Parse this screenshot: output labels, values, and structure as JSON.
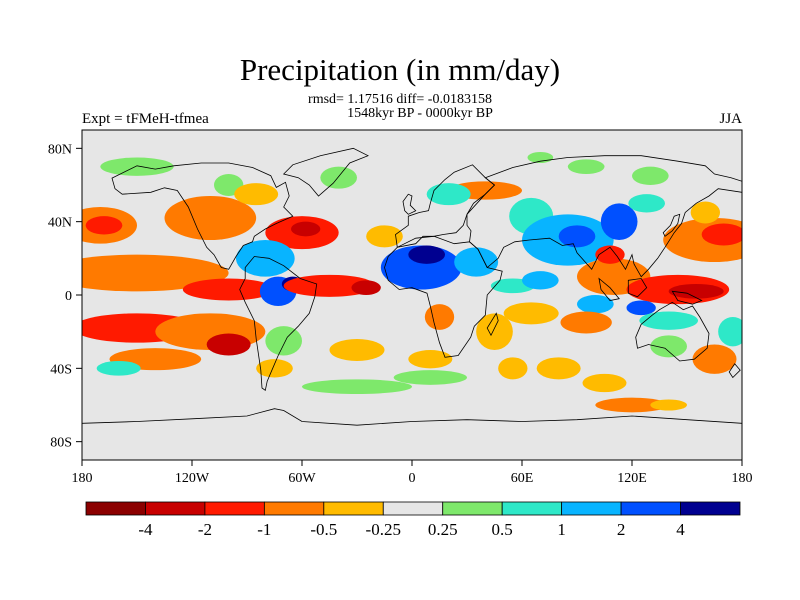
{
  "title": "Precipitation (in mm/day)",
  "stats_line1": "rmsd= 1.17516 diff= -0.0183158",
  "stats_line2": "1548kyr BP - 0000kyr BP",
  "left_label": "Expt = tFMeH-tfmea",
  "right_label": "JJA",
  "map": {
    "projection": "cylindrical-equidistant",
    "lon_range": [
      -180,
      180
    ],
    "lat_range": [
      -90,
      90
    ],
    "x_ticks": [
      {
        "lon": -180,
        "label": "180"
      },
      {
        "lon": -120,
        "label": "120W"
      },
      {
        "lon": -60,
        "label": "60W"
      },
      {
        "lon": 0,
        "label": "0"
      },
      {
        "lon": 60,
        "label": "60E"
      },
      {
        "lon": 120,
        "label": "120E"
      },
      {
        "lon": 180,
        "label": "180"
      }
    ],
    "y_ticks": [
      {
        "lat": 80,
        "label": "80N"
      },
      {
        "lat": 40,
        "label": "40N"
      },
      {
        "lat": 0,
        "label": "0"
      },
      {
        "lat": -40,
        "label": "40S"
      },
      {
        "lat": -80,
        "label": "80S"
      }
    ],
    "background_color": "#e6e6e6"
  },
  "colorbar": {
    "colors": [
      "#8b0000",
      "#c80000",
      "#ff1a00",
      "#ff7a00",
      "#ffbb00",
      "#e6e6e6",
      "#7ee86b",
      "#2ee8c8",
      "#08b4ff",
      "#0050ff",
      "#000090"
    ],
    "labels": [
      "-4",
      "-2",
      "-1",
      "-0.5",
      "-0.25",
      "0.25",
      "0.5",
      "1",
      "2",
      "4"
    ]
  },
  "field_anomalies": [
    {
      "lon": 70,
      "lat": 75,
      "rx": 7,
      "ry": 3,
      "level": 1
    },
    {
      "lon": -150,
      "lat": 70,
      "rx": 20,
      "ry": 5,
      "level": 1
    },
    {
      "lon": -40,
      "lat": 64,
      "rx": 10,
      "ry": 6,
      "level": 1
    },
    {
      "lon": 95,
      "lat": 70,
      "rx": 10,
      "ry": 4,
      "level": 1
    },
    {
      "lon": 130,
      "lat": 65,
      "rx": 10,
      "ry": 5,
      "level": 1
    },
    {
      "lon": -100,
      "lat": 60,
      "rx": 8,
      "ry": 6,
      "level": 1
    },
    {
      "lon": -170,
      "lat": 38,
      "rx": 20,
      "ry": 10,
      "level": -2
    },
    {
      "lon": -168,
      "lat": 38,
      "rx": 10,
      "ry": 5,
      "level": -3
    },
    {
      "lon": -110,
      "lat": 42,
      "rx": 25,
      "ry": 12,
      "level": -2
    },
    {
      "lon": -85,
      "lat": 55,
      "rx": 12,
      "ry": 6,
      "level": -1
    },
    {
      "lon": -60,
      "lat": 34,
      "rx": 20,
      "ry": 9,
      "level": -3
    },
    {
      "lon": -58,
      "lat": 36,
      "rx": 8,
      "ry": 4,
      "level": -4
    },
    {
      "lon": -15,
      "lat": 32,
      "rx": 10,
      "ry": 6,
      "level": -1
    },
    {
      "lon": 40,
      "lat": 57,
      "rx": 20,
      "ry": 5,
      "level": -2
    },
    {
      "lon": 20,
      "lat": 55,
      "rx": 12,
      "ry": 6,
      "level": 2
    },
    {
      "lon": 65,
      "lat": 43,
      "rx": 12,
      "ry": 10,
      "level": 2
    },
    {
      "lon": 85,
      "lat": 30,
      "rx": 25,
      "ry": 14,
      "level": 3
    },
    {
      "lon": 90,
      "lat": 32,
      "rx": 10,
      "ry": 6,
      "level": 4
    },
    {
      "lon": 113,
      "lat": 40,
      "rx": 10,
      "ry": 10,
      "level": 4
    },
    {
      "lon": 128,
      "lat": 50,
      "rx": 10,
      "ry": 5,
      "level": 2
    },
    {
      "lon": 165,
      "lat": 30,
      "rx": 28,
      "ry": 12,
      "level": -2
    },
    {
      "lon": 170,
      "lat": 33,
      "rx": 12,
      "ry": 6,
      "level": -3
    },
    {
      "lon": 160,
      "lat": 45,
      "rx": 8,
      "ry": 6,
      "level": -1
    },
    {
      "lon": -150,
      "lat": 12,
      "rx": 50,
      "ry": 10,
      "level": -2
    },
    {
      "lon": -100,
      "lat": 3,
      "rx": 25,
      "ry": 6,
      "level": -3
    },
    {
      "lon": -80,
      "lat": 20,
      "rx": 16,
      "ry": 10,
      "level": 3
    },
    {
      "lon": -73,
      "lat": 2,
      "rx": 10,
      "ry": 8,
      "level": 4
    },
    {
      "lon": -65,
      "lat": 6,
      "rx": 6,
      "ry": 4,
      "level": 5
    },
    {
      "lon": -45,
      "lat": 5,
      "rx": 25,
      "ry": 6,
      "level": -3
    },
    {
      "lon": -25,
      "lat": 4,
      "rx": 8,
      "ry": 4,
      "level": -4
    },
    {
      "lon": 5,
      "lat": 15,
      "rx": 22,
      "ry": 12,
      "level": 4
    },
    {
      "lon": 8,
      "lat": 22,
      "rx": 10,
      "ry": 5,
      "level": 5
    },
    {
      "lon": 35,
      "lat": 18,
      "rx": 12,
      "ry": 8,
      "level": 3
    },
    {
      "lon": 15,
      "lat": -12,
      "rx": 8,
      "ry": 7,
      "level": -2
    },
    {
      "lon": 45,
      "lat": -20,
      "rx": 10,
      "ry": 10,
      "level": -1
    },
    {
      "lon": 55,
      "lat": 5,
      "rx": 12,
      "ry": 4,
      "level": 2
    },
    {
      "lon": 70,
      "lat": 8,
      "rx": 10,
      "ry": 5,
      "level": 3
    },
    {
      "lon": 110,
      "lat": 10,
      "rx": 20,
      "ry": 10,
      "level": -2
    },
    {
      "lon": 108,
      "lat": 22,
      "rx": 8,
      "ry": 5,
      "level": -3
    },
    {
      "lon": 145,
      "lat": 3,
      "rx": 28,
      "ry": 8,
      "level": -3
    },
    {
      "lon": 155,
      "lat": 2,
      "rx": 15,
      "ry": 4,
      "level": -4
    },
    {
      "lon": 100,
      "lat": -5,
      "rx": 10,
      "ry": 5,
      "level": 3
    },
    {
      "lon": 125,
      "lat": -7,
      "rx": 8,
      "ry": 4,
      "level": 4
    },
    {
      "lon": 140,
      "lat": -14,
      "rx": 16,
      "ry": 5,
      "level": 2
    },
    {
      "lon": 95,
      "lat": -15,
      "rx": 14,
      "ry": 6,
      "level": -2
    },
    {
      "lon": 65,
      "lat": -10,
      "rx": 15,
      "ry": 6,
      "level": -1
    },
    {
      "lon": -150,
      "lat": -18,
      "rx": 35,
      "ry": 8,
      "level": -3
    },
    {
      "lon": -110,
      "lat": -20,
      "rx": 30,
      "ry": 10,
      "level": -2
    },
    {
      "lon": -100,
      "lat": -27,
      "rx": 12,
      "ry": 6,
      "level": -4
    },
    {
      "lon": -140,
      "lat": -35,
      "rx": 25,
      "ry": 6,
      "level": -2
    },
    {
      "lon": -70,
      "lat": -25,
      "rx": 10,
      "ry": 8,
      "level": 1
    },
    {
      "lon": -75,
      "lat": -40,
      "rx": 10,
      "ry": 5,
      "level": -1
    },
    {
      "lon": -30,
      "lat": -30,
      "rx": 15,
      "ry": 6,
      "level": -1
    },
    {
      "lon": 10,
      "lat": -35,
      "rx": 12,
      "ry": 5,
      "level": -1
    },
    {
      "lon": 55,
      "lat": -40,
      "rx": 8,
      "ry": 6,
      "level": -1
    },
    {
      "lon": 80,
      "lat": -40,
      "rx": 12,
      "ry": 6,
      "level": -1
    },
    {
      "lon": 105,
      "lat": -48,
      "rx": 12,
      "ry": 5,
      "level": -1
    },
    {
      "lon": 140,
      "lat": -28,
      "rx": 10,
      "ry": 6,
      "level": 1
    },
    {
      "lon": 165,
      "lat": -35,
      "rx": 12,
      "ry": 8,
      "level": -2
    },
    {
      "lon": 175,
      "lat": -20,
      "rx": 8,
      "ry": 8,
      "level": 2
    },
    {
      "lon": -160,
      "lat": -40,
      "rx": 12,
      "ry": 4,
      "level": 2
    },
    {
      "lon": -30,
      "lat": -50,
      "rx": 30,
      "ry": 4,
      "level": 1
    },
    {
      "lon": 10,
      "lat": -45,
      "rx": 20,
      "ry": 4,
      "level": 1
    },
    {
      "lon": 120,
      "lat": -60,
      "rx": 20,
      "ry": 4,
      "level": -2
    },
    {
      "lon": 140,
      "lat": -60,
      "rx": 10,
      "ry": 3,
      "level": -1
    }
  ]
}
